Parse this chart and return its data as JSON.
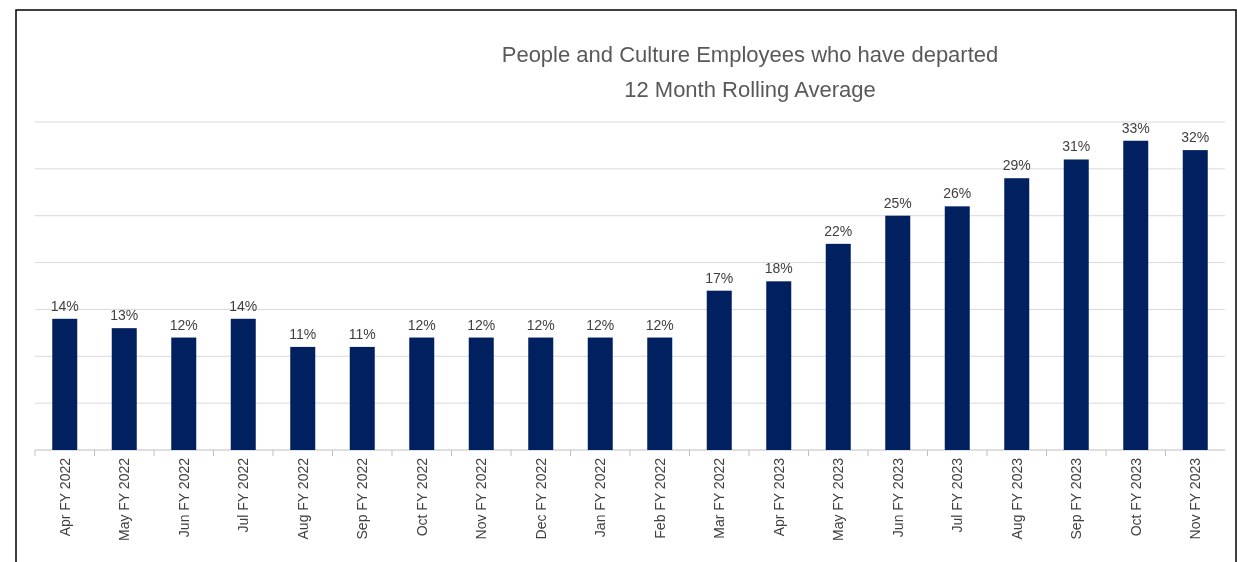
{
  "chart_data": {
    "type": "bar",
    "title": "People and Culture Employees who have departed",
    "subtitle": "12 Month Rolling Average",
    "categories": [
      "Apr FY 2022",
      "May FY 2022",
      "Jun FY 2022",
      "Jul FY 2022",
      "Aug FY 2022",
      "Sep FY 2022",
      "Oct FY 2022",
      "Nov FY 2022",
      "Dec FY 2022",
      "Jan FY 2022",
      "Feb FY 2022",
      "Mar FY 2022",
      "Apr FY 2023",
      "May FY 2023",
      "Jun FY 2023",
      "Jul FY 2023",
      "Aug FY 2023",
      "Sep FY 2023",
      "Oct FY 2023",
      "Nov FY 2023"
    ],
    "color": "#002060",
    "values": [
      14,
      13,
      12,
      14,
      11,
      11,
      12,
      12,
      12,
      12,
      12,
      17,
      18,
      22,
      25,
      26,
      29,
      31,
      33,
      32
    ],
    "value_labels": [
      "14%",
      "13%",
      "12%",
      "14%",
      "11%",
      "11%",
      "12%",
      "12%",
      "12%",
      "12%",
      "12%",
      "17%",
      "18%",
      "22%",
      "25%",
      "26%",
      "29%",
      "31%",
      "33%",
      "32%"
    ],
    "grid": "y",
    "tick_labels": "x"
  }
}
